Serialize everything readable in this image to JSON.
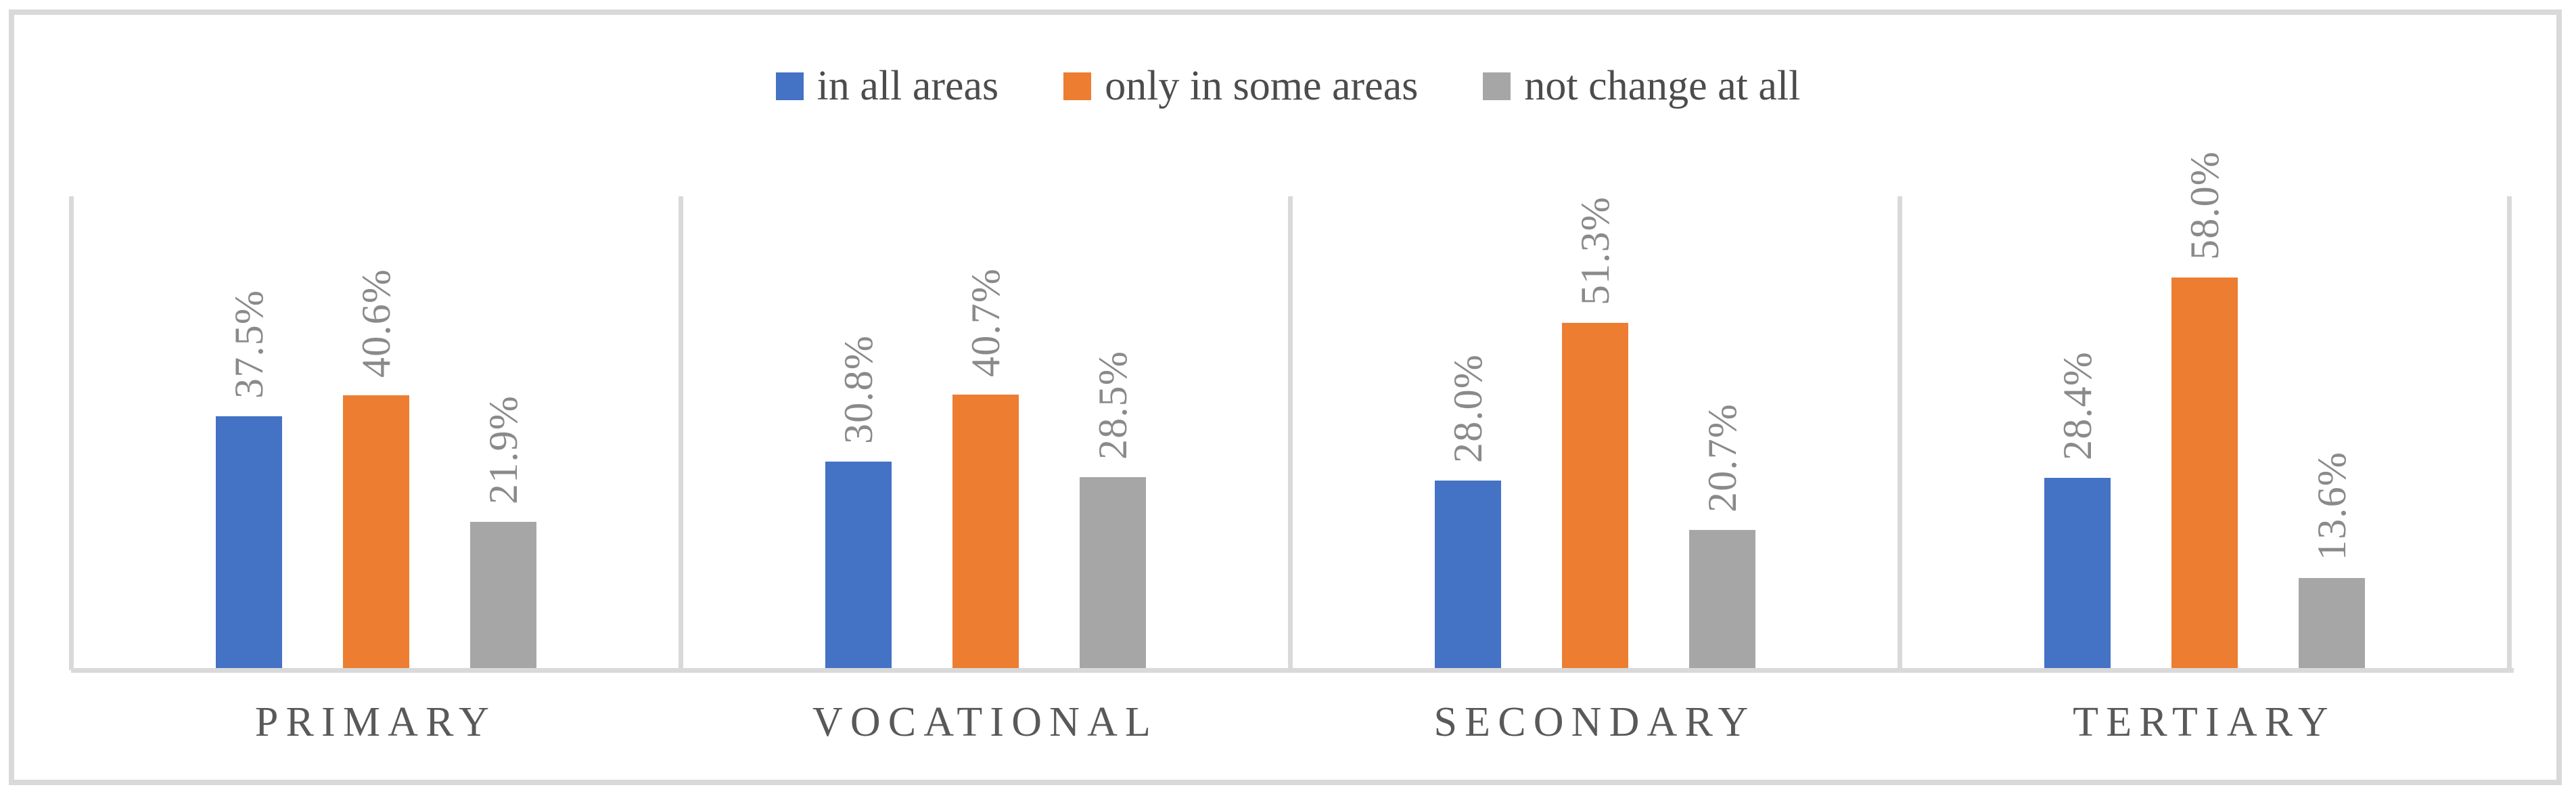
{
  "legend": {
    "items": [
      {
        "label": "in all areas",
        "color": "#4472C4"
      },
      {
        "label": "only in some areas",
        "color": "#ED7D31"
      },
      {
        "label": "not change at all",
        "color": "#A6A6A6"
      }
    ]
  },
  "chart_data": {
    "type": "bar",
    "title": "",
    "xlabel": "",
    "ylabel": "",
    "categories": [
      "PRIMARY",
      "VOCATIONAL",
      "SECONDARY",
      "TERTIARY"
    ],
    "series": [
      {
        "name": "in all areas",
        "color": "#4472C4",
        "values": [
          37.5,
          30.8,
          28.0,
          28.4
        ]
      },
      {
        "name": "only in some areas",
        "color": "#ED7D31",
        "values": [
          40.6,
          40.7,
          51.3,
          58.0
        ]
      },
      {
        "name": "not change at all",
        "color": "#A6A6A6",
        "values": [
          21.9,
          28.5,
          20.7,
          13.6
        ]
      }
    ],
    "value_labels": [
      [
        "37.5%",
        "40.6%",
        "21.9%"
      ],
      [
        "30.8%",
        "40.7%",
        "28.5%"
      ],
      [
        "28.0%",
        "51.3%",
        "20.7%"
      ],
      [
        "28.4%",
        "58.0%",
        "13.6%"
      ]
    ],
    "ylim": [
      0,
      70
    ],
    "grid": "vertical-panel-separators-only",
    "legend_position": "top",
    "value_label_rotation": -90,
    "axis_line_color": "#D9D9D9",
    "value_label_color": "#8A8A8A",
    "category_label_color": "#595959"
  }
}
